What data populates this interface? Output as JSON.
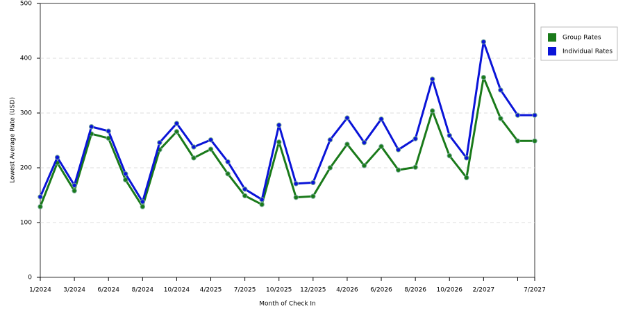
{
  "chart_data": {
    "type": "line",
    "x_label": "Month of Check In",
    "y_label": "Lowest Average Rate (USD)",
    "categories": [
      "1/2024",
      null,
      "3/2024",
      null,
      "6/2024",
      null,
      "8/2024",
      null,
      "10/2024",
      null,
      "4/2025",
      null,
      "7/2025",
      null,
      "10/2025",
      null,
      "12/2025",
      null,
      "4/2026",
      null,
      "6/2026",
      null,
      "8/2026",
      null,
      "10/2026",
      null,
      "2/2027",
      null,
      null,
      "7/2027"
    ],
    "series": [
      {
        "name": "Group Rates",
        "color": "#1a7a1a",
        "values": [
          129,
          209,
          158,
          262,
          254,
          178,
          129,
          233,
          266,
          218,
          234,
          189,
          149,
          133,
          247,
          146,
          148,
          200,
          243,
          204,
          239,
          196,
          201,
          304,
          222,
          182,
          365,
          290,
          249,
          249
        ]
      },
      {
        "name": "Individual Rates",
        "color": "#0a14d8",
        "values": [
          147,
          219,
          168,
          275,
          267,
          189,
          138,
          246,
          281,
          238,
          251,
          211,
          161,
          142,
          278,
          171,
          173,
          251,
          291,
          246,
          289,
          233,
          253,
          362,
          259,
          218,
          430,
          342,
          296,
          296
        ]
      }
    ],
    "ylim": [
      0,
      500
    ],
    "yticks": [
      0,
      100,
      200,
      300,
      400,
      500
    ],
    "grid": true,
    "legend": "right"
  }
}
